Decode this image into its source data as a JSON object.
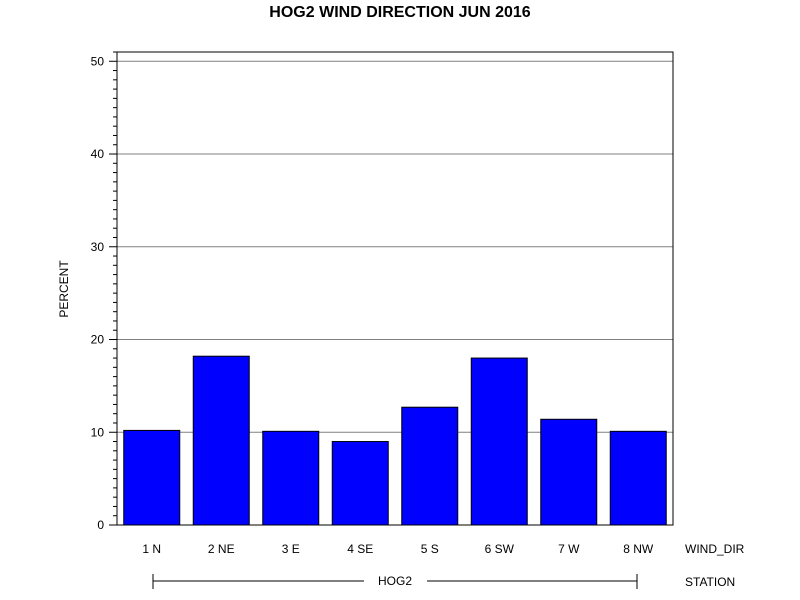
{
  "chart_data": {
    "type": "bar",
    "title": "HOG2 WIND DIRECTION JUN 2016",
    "ylabel": "PERCENT",
    "xlabel": "WIND_DIR",
    "group_axis_label": "STATION",
    "group_label": "HOG2",
    "categories": [
      "1 N",
      "2 NE",
      "3 E",
      "4 SE",
      "5 S",
      "6 SW",
      "7 W",
      "8 NW"
    ],
    "values": [
      10.2,
      18.2,
      10.1,
      9.0,
      12.7,
      18.0,
      11.4,
      10.1
    ],
    "ylim": [
      0,
      51
    ],
    "yticks": [
      0,
      10,
      20,
      30,
      40,
      50
    ],
    "grid": true,
    "bar_color": "#0000FF",
    "legend": "none"
  }
}
